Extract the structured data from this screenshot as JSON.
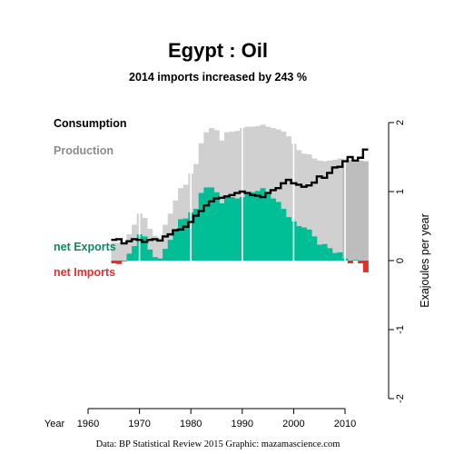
{
  "title": "Egypt :  Oil",
  "subtitle": "2014 imports increased by 243 %",
  "credit": "Data: BP Statistical Review 2015    Graphic: mazamascience.com",
  "legend": {
    "consumption": "Consumption",
    "production": "Production",
    "net_exports": "net Exports",
    "net_imports": "net Imports"
  },
  "colors": {
    "production": "#d0d0d0",
    "production_shaded": "#bdbdbd",
    "consumption": "#000000",
    "net_exports": "#00be96",
    "net_imports": "#e0312d",
    "net_exports_label": "#0e8a61",
    "net_imports_label": "#e0312d",
    "production_label": "#8c8c8c"
  },
  "chart_data": {
    "type": "area",
    "xlabel": "Year",
    "ylabel": "Exajoules per year",
    "xlim": [
      1960,
      2014
    ],
    "ylim": [
      -2,
      2
    ],
    "x_ticks": [
      "1960",
      "1970",
      "1980",
      "1990",
      "2000",
      "2010"
    ],
    "y_ticks": [
      "-2",
      "-1",
      "0",
      "1",
      "2"
    ],
    "years": [
      1965,
      1966,
      1967,
      1968,
      1969,
      1970,
      1971,
      1972,
      1973,
      1974,
      1975,
      1976,
      1977,
      1978,
      1979,
      1980,
      1981,
      1982,
      1983,
      1984,
      1985,
      1986,
      1987,
      1988,
      1989,
      1990,
      1991,
      1992,
      1993,
      1994,
      1995,
      1996,
      1997,
      1998,
      1999,
      2000,
      2001,
      2002,
      2003,
      2004,
      2005,
      2006,
      2007,
      2008,
      2009,
      2010,
      2011,
      2012,
      2013,
      2014
    ],
    "series": [
      {
        "name": "Production",
        "values": [
          0.26,
          0.26,
          0.24,
          0.38,
          0.52,
          0.68,
          0.62,
          0.46,
          0.36,
          0.32,
          0.52,
          0.68,
          0.87,
          1.05,
          1.1,
          1.26,
          1.4,
          1.7,
          1.86,
          1.92,
          1.89,
          1.74,
          1.86,
          1.87,
          1.88,
          1.92,
          1.94,
          1.94,
          1.95,
          1.97,
          1.94,
          1.92,
          1.9,
          1.87,
          1.8,
          1.69,
          1.6,
          1.55,
          1.54,
          1.48,
          1.45,
          1.44,
          1.45,
          1.46,
          1.48,
          1.47,
          1.46,
          1.46,
          1.45,
          1.44
        ]
      },
      {
        "name": "Consumption",
        "values": [
          0.3,
          0.31,
          0.25,
          0.28,
          0.31,
          0.3,
          0.27,
          0.3,
          0.31,
          0.29,
          0.35,
          0.38,
          0.44,
          0.45,
          0.49,
          0.56,
          0.65,
          0.72,
          0.8,
          0.86,
          0.9,
          0.91,
          0.93,
          0.95,
          0.98,
          1.0,
          0.98,
          0.95,
          0.94,
          0.92,
          0.98,
          1.02,
          1.05,
          1.12,
          1.17,
          1.12,
          1.1,
          1.07,
          1.09,
          1.13,
          1.22,
          1.2,
          1.27,
          1.35,
          1.36,
          1.44,
          1.5,
          1.45,
          1.49,
          1.61
        ]
      },
      {
        "name": "Net",
        "values": [
          -0.04,
          -0.05,
          -0.01,
          0.1,
          0.21,
          0.38,
          0.35,
          0.16,
          0.05,
          0.03,
          0.17,
          0.3,
          0.43,
          0.6,
          0.61,
          0.7,
          0.75,
          0.98,
          1.06,
          1.06,
          0.99,
          0.83,
          0.93,
          0.92,
          0.9,
          0.92,
          0.96,
          0.99,
          1.01,
          1.05,
          0.96,
          0.9,
          0.85,
          0.75,
          0.63,
          0.57,
          0.5,
          0.48,
          0.45,
          0.35,
          0.23,
          0.24,
          0.18,
          0.11,
          0.12,
          0.03,
          -0.04,
          0.01,
          -0.04,
          -0.17
        ]
      }
    ]
  }
}
